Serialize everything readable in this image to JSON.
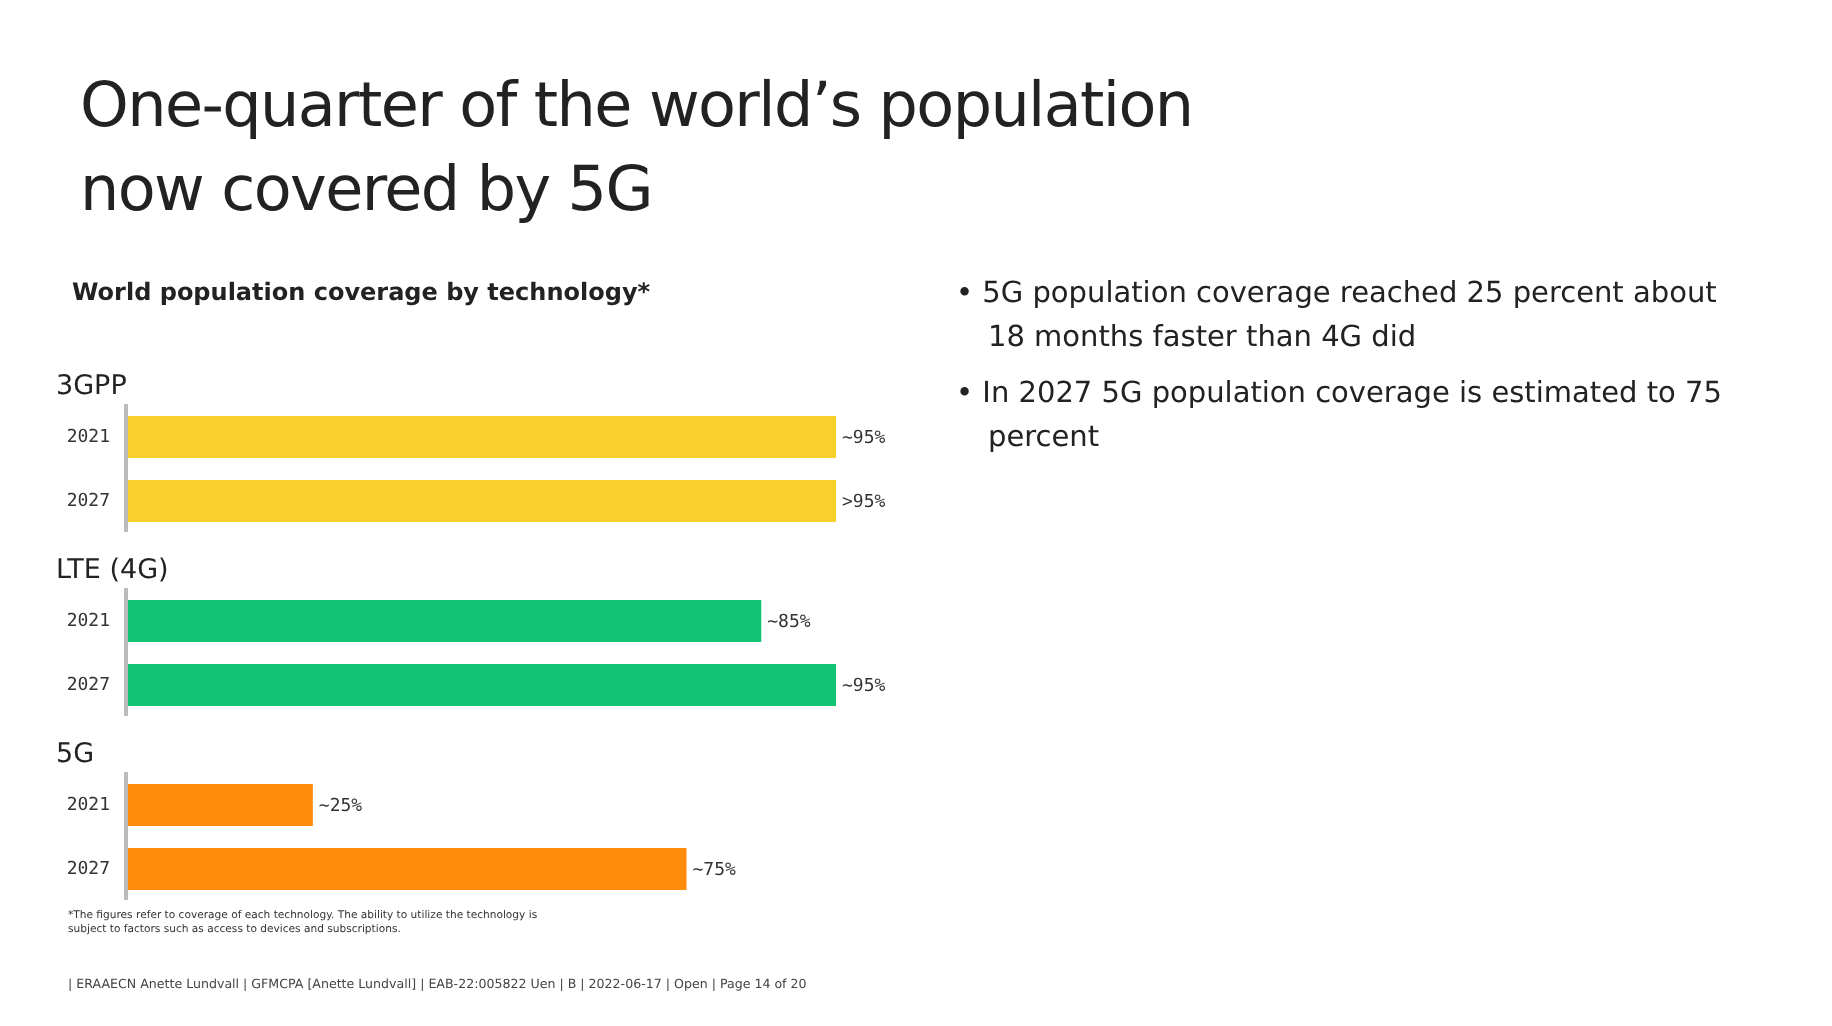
{
  "chart_data": {
    "type": "bar",
    "orientation": "horizontal",
    "title": "One-quarter of the world’s population now covered by 5G",
    "subtitle": "World population coverage by technology*",
    "categories": [
      "2021",
      "2027",
      "2021",
      "2027",
      "2021",
      "2027"
    ],
    "series": [
      {
        "name": "3GPP",
        "color": "#f7d02c",
        "values": [
          95,
          95,
          null,
          null,
          null,
          null
        ],
        "value_labels": [
          "~95%",
          ">95%",
          null,
          null,
          null,
          null
        ]
      },
      {
        "name": "LTE (4G)",
        "color": "#13c374",
        "values": [
          null,
          null,
          85,
          95,
          null,
          null
        ],
        "value_labels": [
          null,
          null,
          "~85%",
          "~95%",
          null,
          null
        ]
      },
      {
        "name": "5G",
        "color": "#ff8c0a",
        "values": [
          null,
          null,
          null,
          null,
          25,
          75
        ],
        "value_labels": [
          null,
          null,
          null,
          null,
          "~25%",
          "~75%"
        ]
      }
    ],
    "annotations": [
      "• 5G population coverage reached 25 percent about 18 months faster than 4G did",
      "• In 2027 5G population coverage is estimated to 75 percent",
      "*The figures refer to coverage of each technology. The ability to utilize the technology is subject to factors such as access to devices and subscriptions.",
      "| ERAAECN Anette Lundvall | GFMCPA [Anette Lundvall] | EAB-22:005822 Uen | B | 2022-06-17 | Open | Page 14 of 20"
    ]
  }
}
